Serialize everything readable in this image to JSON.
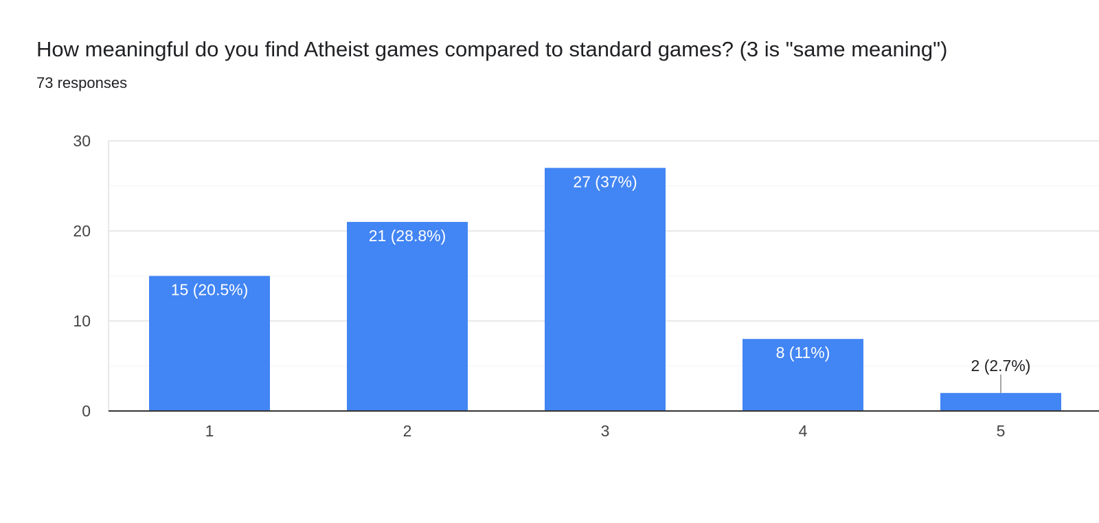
{
  "header": {
    "question": "How meaningful do you find Atheist games compared to standard games? (3 is \"same meaning\")",
    "responses": "73 responses"
  },
  "colors": {
    "bar": "#4285f4",
    "gridline": "#e8e8e8",
    "baseline": "#333333",
    "text": "#202124",
    "tick_text": "#444444"
  },
  "chart_data": {
    "type": "bar",
    "title": "How meaningful do you find Atheist games compared to standard games? (3 is \"same meaning\")",
    "subtitle": "73 responses",
    "categories": [
      "1",
      "2",
      "3",
      "4",
      "5"
    ],
    "values": [
      15,
      21,
      27,
      8,
      2
    ],
    "data_labels": [
      "15 (20.5%)",
      "21 (28.8%)",
      "27 (37%)",
      "8 (11%)",
      "2 (2.7%)"
    ],
    "y_ticks": [
      "0",
      "10",
      "20",
      "30"
    ],
    "ylim": [
      0,
      30
    ],
    "xlabel": "",
    "ylabel": "",
    "grid": true,
    "legend": "none"
  }
}
